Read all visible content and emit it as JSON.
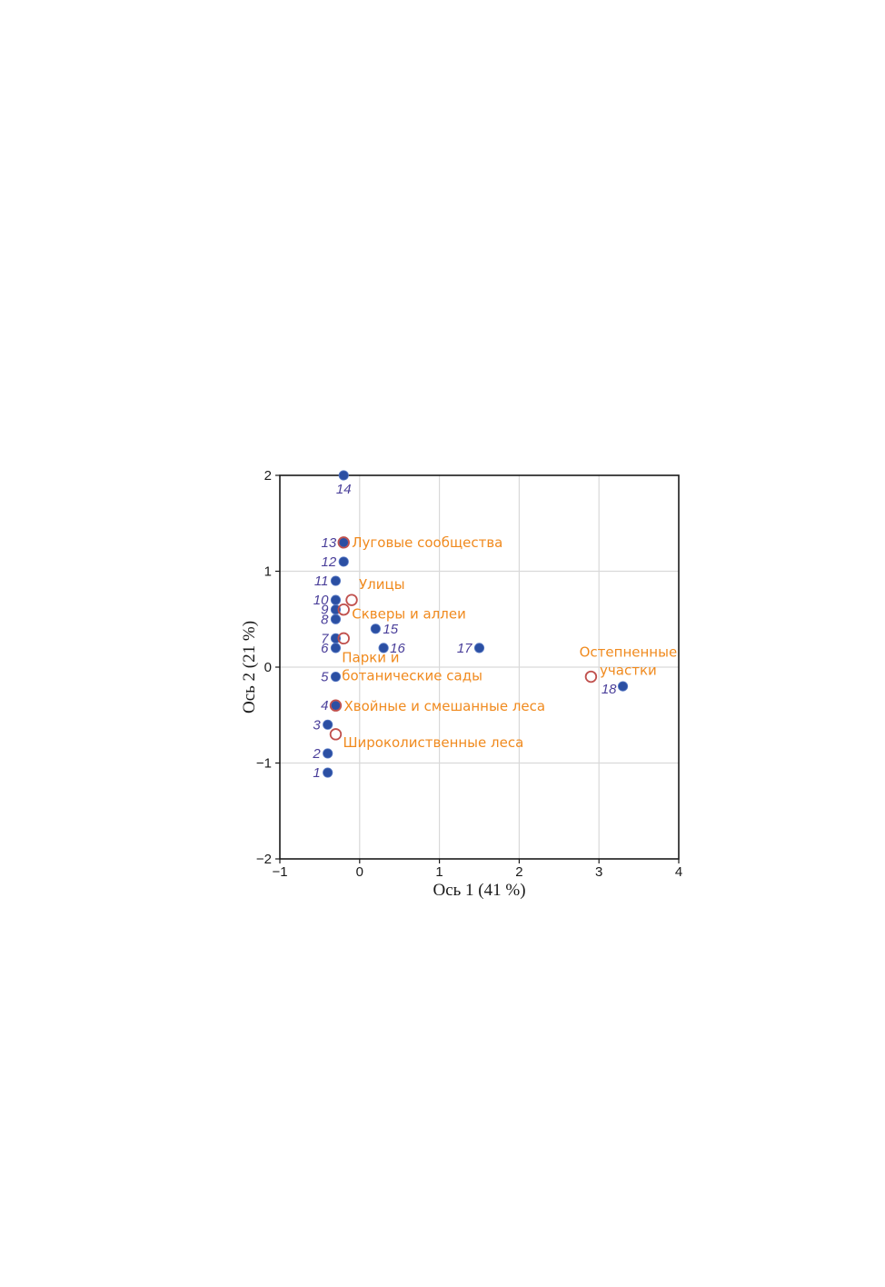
{
  "chart_data": {
    "type": "scatter",
    "xlabel": "Ось 1 (41 %)",
    "ylabel": "Ось 2 (21 %)",
    "xlim": [
      -1,
      4
    ],
    "ylim": [
      -2,
      2
    ],
    "xticks": [
      -1,
      0,
      1,
      2,
      3,
      4
    ],
    "yticks": [
      -2,
      -1,
      0,
      1,
      2
    ],
    "xtick_labels": [
      "−1",
      "0",
      "1",
      "2",
      "3",
      "4"
    ],
    "ytick_labels": [
      "−2",
      "−1",
      "0",
      "1",
      "2"
    ],
    "grid": true,
    "colors": {
      "points": "#2b4fa3",
      "habitats": "#c0504d",
      "habitat_labels": "#f08a1e",
      "point_labels": "#4a3f9a",
      "grid": "#d9d9d9"
    },
    "series": [
      {
        "points": [
          {
            "label": "1",
            "x": -0.4,
            "y": -1.1
          },
          {
            "label": "2",
            "x": -0.4,
            "y": -0.9
          },
          {
            "label": "3",
            "x": -0.4,
            "y": -0.6
          },
          {
            "label": "4",
            "x": -0.3,
            "y": -0.4
          },
          {
            "label": "5",
            "x": -0.3,
            "y": -0.1
          },
          {
            "label": "6",
            "x": -0.3,
            "y": 0.2
          },
          {
            "label": "7",
            "x": -0.3,
            "y": 0.3
          },
          {
            "label": "8",
            "x": -0.3,
            "y": 0.5
          },
          {
            "label": "9",
            "x": -0.3,
            "y": 0.6
          },
          {
            "label": "10",
            "x": -0.3,
            "y": 0.7
          },
          {
            "label": "11",
            "x": -0.3,
            "y": 0.9
          },
          {
            "label": "12",
            "x": -0.2,
            "y": 1.1
          },
          {
            "label": "13",
            "x": -0.2,
            "y": 1.3
          },
          {
            "label": "14",
            "x": -0.2,
            "y": 2.0
          },
          {
            "label": "15",
            "x": 0.2,
            "y": 0.4
          },
          {
            "label": "16",
            "x": 0.3,
            "y": 0.2
          },
          {
            "label": "17",
            "x": 1.5,
            "y": 0.2
          },
          {
            "label": "18",
            "x": 3.3,
            "y": -0.2
          }
        ]
      },
      {
        "points": [
          {
            "lines": [
              "Луговые сообщества"
            ],
            "x": -0.2,
            "y": 1.3
          },
          {
            "lines": [
              "Улицы"
            ],
            "x": -0.1,
            "y": 0.7
          },
          {
            "lines": [
              "Скверы и аллеи"
            ],
            "x": -0.2,
            "y": 0.6
          },
          {
            "lines": [
              "Парки и",
              "ботанические сады"
            ],
            "x": -0.2,
            "y": 0.3
          },
          {
            "lines": [
              "Хвойные и смешанные леса"
            ],
            "x": -0.3,
            "y": -0.4
          },
          {
            "lines": [
              "Широколиственные леса"
            ],
            "x": -0.3,
            "y": -0.7
          },
          {
            "lines": [
              "Остепненные",
              "участки"
            ],
            "x": 2.9,
            "y": -0.1
          }
        ]
      }
    ]
  }
}
